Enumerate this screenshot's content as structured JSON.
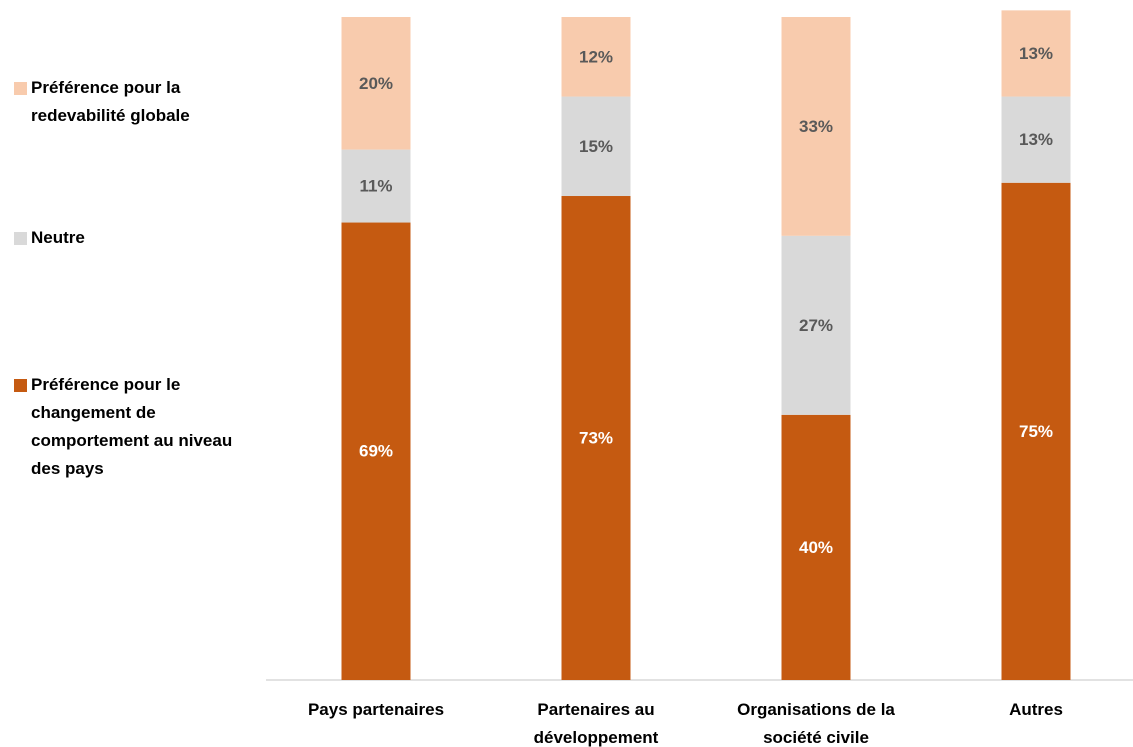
{
  "chart_data": {
    "type": "stacked_bar",
    "categories": [
      "Pays partenaires",
      "Partenaires au développement",
      "Organisations de la société civile",
      "Autres"
    ],
    "series": [
      {
        "name": "Préférence pour le changement de comportement au niveau des pays",
        "color": "#c55a11",
        "values": [
          69,
          73,
          40,
          75
        ],
        "value_labels": [
          "69%",
          "73%",
          "40%",
          "75%"
        ]
      },
      {
        "name": "Neutre",
        "color": "#d9d9d9",
        "values": [
          11,
          15,
          27,
          13
        ],
        "value_labels": [
          "11%",
          "15%",
          "27%",
          "13%"
        ]
      },
      {
        "name": "Préférence pour la redevabilité globale",
        "color": "#f8cbad",
        "values": [
          20,
          12,
          33,
          13
        ],
        "value_labels": [
          "20%",
          "12%",
          "33%",
          "13%"
        ]
      }
    ],
    "ylim": [
      0,
      100
    ],
    "legend": "left"
  }
}
